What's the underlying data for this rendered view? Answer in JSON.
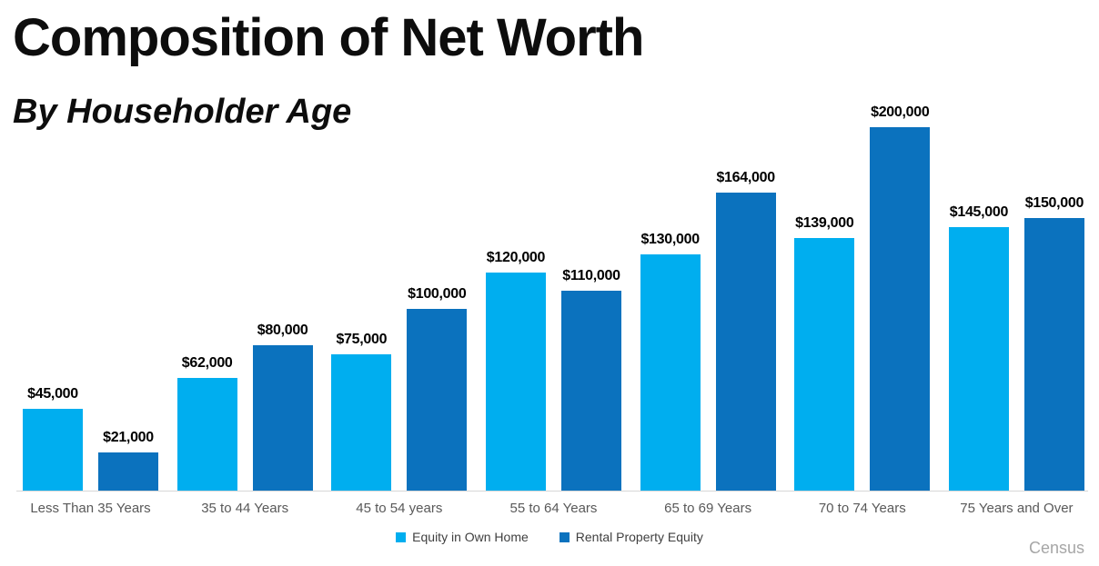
{
  "header": {
    "title": "Composition of Net Worth",
    "subtitle": "By Householder Age"
  },
  "source": "Census",
  "colors": {
    "own_home": "#00AEEF",
    "rental": "#0B72BE",
    "category_text": "#595959",
    "axis_line": "#d6d6d6",
    "source_text": "#a6a6a6"
  },
  "legend": {
    "items": [
      {
        "label": "Equity in Own Home",
        "color": "#00AEEF"
      },
      {
        "label": "Rental Property Equity",
        "color": "#0B72BE"
      }
    ]
  },
  "chart_data": {
    "type": "bar",
    "title": "Composition of Net Worth",
    "subtitle": "By Householder Age",
    "categories": [
      "Less Than 35 Years",
      "35 to 44 Years",
      "45 to 54 years",
      "55 to 64 Years",
      "65 to 69 Years",
      "70 to 74 Years",
      "75 Years and Over"
    ],
    "series": [
      {
        "name": "Equity in Own Home",
        "color": "#00AEEF",
        "values": [
          45000,
          62000,
          75000,
          120000,
          130000,
          139000,
          145000
        ],
        "labels": [
          "$45,000",
          "$62,000",
          "$75,000",
          "$120,000",
          "$130,000",
          "$139,000",
          "$145,000"
        ]
      },
      {
        "name": "Rental Property Equity",
        "color": "#0B72BE",
        "values": [
          21000,
          80000,
          100000,
          110000,
          164000,
          200000,
          150000
        ],
        "labels": [
          "$21,000",
          "$80,000",
          "$100,000",
          "$110,000",
          "$164,000",
          "$200,000",
          "$150,000"
        ]
      }
    ],
    "ylim": [
      0,
      200000
    ],
    "grid": false,
    "y_axis_shown": false,
    "value_labels": "above bars, bold black",
    "legend_position": "bottom-center",
    "source_note": "Census"
  }
}
